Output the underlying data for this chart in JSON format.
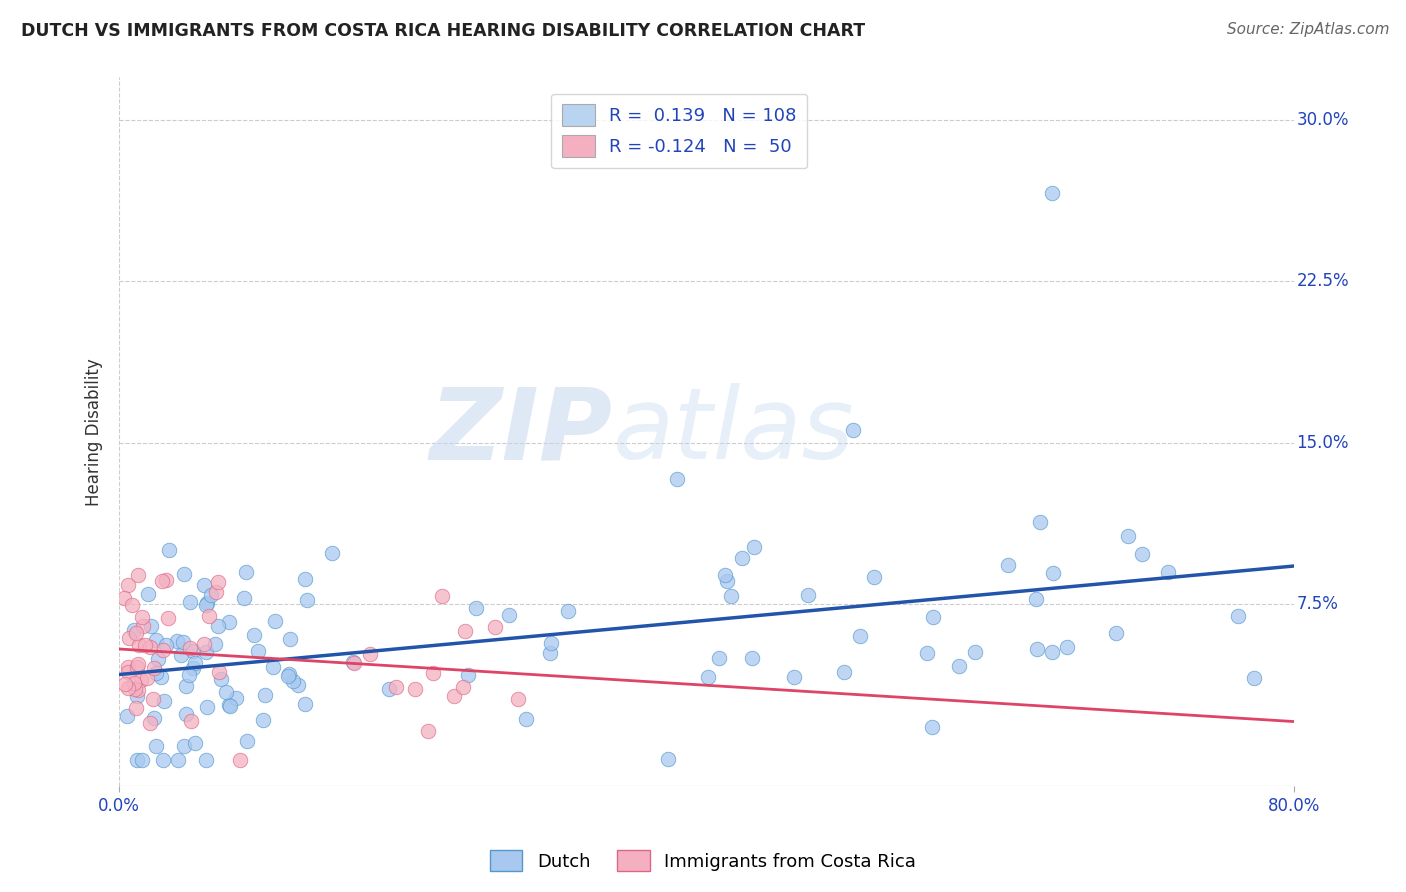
{
  "title": "DUTCH VS IMMIGRANTS FROM COSTA RICA HEARING DISABILITY CORRELATION CHART",
  "source": "Source: ZipAtlas.com",
  "ylabel": "Hearing Disability",
  "xlim": [
    0.0,
    0.8
  ],
  "ylim": [
    -0.01,
    0.32
  ],
  "dutch_color": "#a8c8f0",
  "dutch_edge_color": "#5599cc",
  "cr_color": "#f4b0c0",
  "cr_edge_color": "#dd6688",
  "trend_dutch_color": "#2255aa",
  "trend_cr_color": "#dd4466",
  "legend_box_dutch": "#b8d4f0",
  "legend_box_cr": "#f4b0c0",
  "legend_text_color": "#2244bb",
  "R_dutch": 0.139,
  "N_dutch": 108,
  "R_cr": -0.124,
  "N_cr": 50,
  "background_color": "#ffffff",
  "grid_color": "#cccccc",
  "watermark_zip": "ZIP",
  "watermark_atlas": "atlas",
  "dutch_scatter_seed": 42,
  "cr_scatter_seed": 99
}
